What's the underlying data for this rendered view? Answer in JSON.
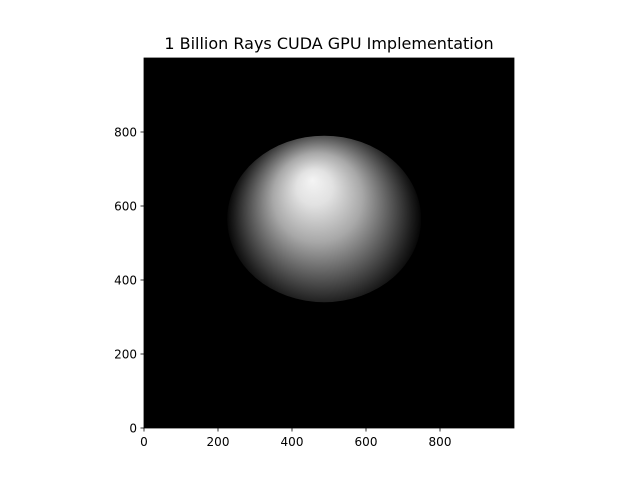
{
  "chart_data": {
    "type": "heatmap",
    "title": "1 Billion Rays CUDA GPU Implementation",
    "xlabel": "",
    "ylabel": "",
    "xlim": [
      0,
      1000
    ],
    "ylim": [
      0,
      1000
    ],
    "x_ticks": [
      0,
      200,
      400,
      600,
      800
    ],
    "y_ticks": [
      0,
      200,
      400,
      600,
      800
    ],
    "colormap": "gray",
    "background_color": "#000000",
    "grid": false,
    "image": {
      "description": "ray-traced shaded sphere",
      "sphere_center": [
        487,
        565
      ],
      "sphere_radii": [
        262,
        225
      ],
      "highlight_center": [
        455,
        670
      ],
      "value_range": [
        0,
        1
      ]
    }
  }
}
